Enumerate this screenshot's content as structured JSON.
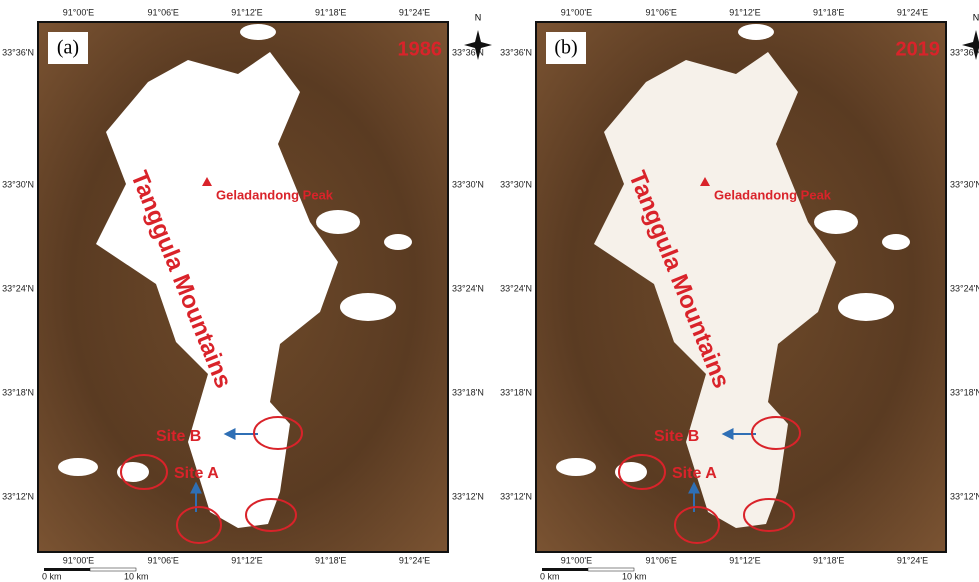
{
  "panels": [
    {
      "label": "(a)",
      "year": "1986",
      "lon_labels": [
        "91°00'E",
        "91°06'E",
        "91°12'E",
        "91°18'E",
        "91°24'E"
      ],
      "lat_labels": [
        "33°36'N",
        "33°30'N",
        "33°24'N",
        "33°18'N",
        "33°12'N"
      ],
      "north": "N",
      "peak": "Geladandong Peak",
      "range": "Tanggula Mountains",
      "sites": [
        "Site B",
        "Site A"
      ],
      "scale": [
        "0 km",
        "10 km"
      ]
    },
    {
      "label": "(b)",
      "year": "2019",
      "lon_labels": [
        "91°00'E",
        "91°06'E",
        "91°12'E",
        "91°18'E",
        "91°24'E"
      ],
      "lat_labels": [
        "33°36'N",
        "33°30'N",
        "33°24'N",
        "33°18'N",
        "33°12'N"
      ],
      "north": "N",
      "peak": "Geladandong Peak",
      "range": "Tanggula Mountains",
      "sites": [
        "Site B",
        "Site A"
      ],
      "scale": [
        "0 km",
        "10 km"
      ]
    }
  ]
}
